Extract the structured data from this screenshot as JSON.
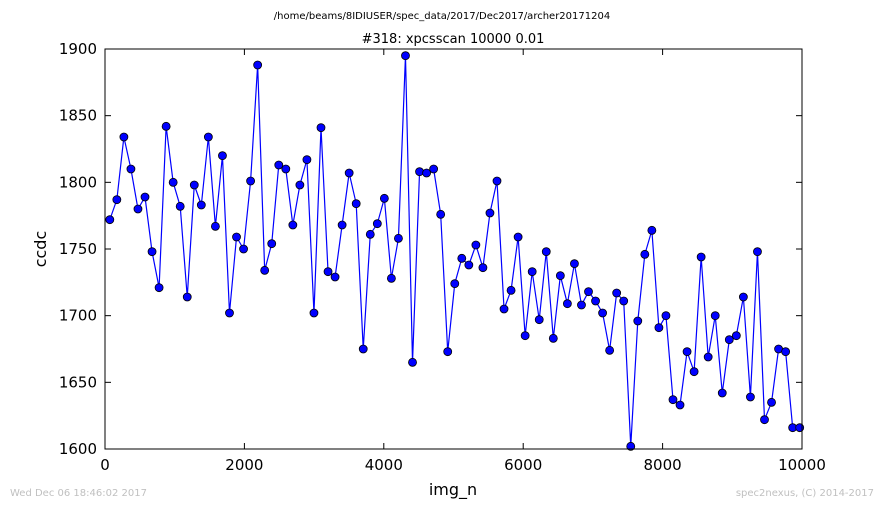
{
  "chart_data": {
    "type": "line",
    "suptitle": "/home/beams/8IDIUSER/spec_data/2017/Dec2017/archer20171204",
    "title": "#318: xpcsscan 10000 0.01",
    "xlabel": "img_n",
    "ylabel": "ccdc",
    "xlim": [
      0,
      10000
    ],
    "ylim": [
      1600,
      1900
    ],
    "xticks": [
      "0",
      "2000",
      "4000",
      "6000",
      "8000",
      "10000"
    ],
    "yticks": [
      "1600",
      "1650",
      "1700",
      "1750",
      "1800",
      "1850",
      "1900"
    ],
    "grid": false,
    "legend": "none",
    "series_color": "#0000ff",
    "x": [
      69,
      170,
      271,
      372,
      473,
      574,
      675,
      776,
      877,
      978,
      1079,
      1180,
      1281,
      1382,
      1483,
      1584,
      1685,
      1786,
      1887,
      1988,
      2089,
      2190,
      2291,
      2392,
      2493,
      2594,
      2695,
      2796,
      2897,
      2998,
      3099,
      3200,
      3301,
      3402,
      3503,
      3604,
      3705,
      3806,
      3907,
      4008,
      4109,
      4210,
      4311,
      4412,
      4513,
      4614,
      4715,
      4816,
      4917,
      5018,
      5119,
      5220,
      5321,
      5422,
      5523,
      5624,
      5725,
      5826,
      5927,
      6028,
      6129,
      6230,
      6331,
      6432,
      6533,
      6634,
      6735,
      6836,
      6937,
      7038,
      7139,
      7240,
      7341,
      7442,
      7543,
      7644,
      7745,
      7846,
      7947,
      8048,
      8149,
      8250,
      8351,
      8452,
      8553,
      8654,
      8755,
      8856,
      8957,
      9058,
      9159,
      9260,
      9361,
      9462,
      9563,
      9664,
      9765,
      9866,
      9967
    ],
    "y": [
      1772,
      1787,
      1834,
      1810,
      1780,
      1789,
      1748,
      1721,
      1842,
      1800,
      1782,
      1714,
      1798,
      1783,
      1834,
      1767,
      1820,
      1702,
      1759,
      1750,
      1801,
      1888,
      1734,
      1754,
      1813,
      1810,
      1768,
      1798,
      1817,
      1702,
      1841,
      1733,
      1729,
      1768,
      1807,
      1784,
      1675,
      1761,
      1769,
      1788,
      1728,
      1758,
      1895,
      1665,
      1808,
      1807,
      1810,
      1776,
      1673,
      1724,
      1743,
      1738,
      1753,
      1736,
      1777,
      1801,
      1705,
      1719,
      1759,
      1685,
      1733,
      1697,
      1748,
      1683,
      1730,
      1709,
      1739,
      1708,
      1718,
      1711,
      1702,
      1674,
      1717,
      1711,
      1602,
      1696,
      1746,
      1764,
      1691,
      1700,
      1637,
      1633,
      1673,
      1658,
      1744,
      1669,
      1700,
      1642,
      1682,
      1685,
      1714,
      1639,
      1748,
      1622,
      1635,
      1675,
      1673,
      1616,
      1616
    ]
  },
  "footer": {
    "left": "Wed Dec 06 18:46:02 2017",
    "right": "spec2nexus, (C) 2014-2017"
  }
}
